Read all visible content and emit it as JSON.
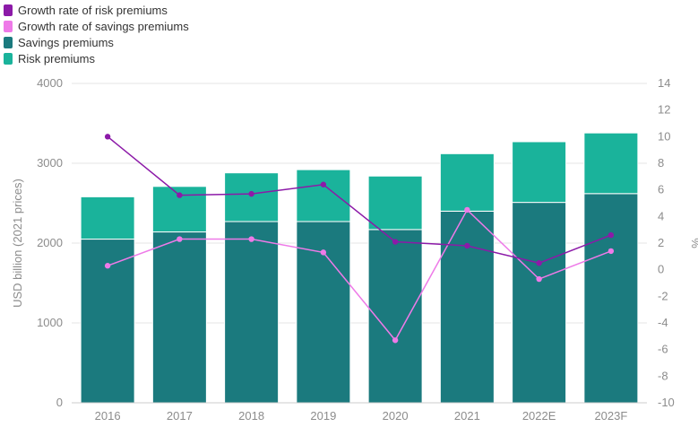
{
  "chart_data": {
    "type": "bar",
    "stacked": true,
    "categories": [
      "2016",
      "2017",
      "2018",
      "2019",
      "2020",
      "2021",
      "2022E",
      "2023F"
    ],
    "series": [
      {
        "name": "Savings premiums",
        "kind": "bar",
        "axis": "left",
        "color": "#1b7a7e",
        "values": [
          2050,
          2140,
          2270,
          2270,
          2170,
          2400,
          2510,
          2620
        ]
      },
      {
        "name": "Risk premiums",
        "kind": "bar",
        "axis": "left",
        "color": "#1ab39b",
        "values": [
          530,
          570,
          610,
          650,
          670,
          720,
          760,
          760
        ]
      },
      {
        "name": "Growth rate of risk premiums",
        "kind": "line",
        "axis": "right",
        "color": "#8c1aa8",
        "values": [
          10.0,
          5.6,
          5.7,
          6.4,
          2.1,
          1.8,
          0.5,
          2.6
        ]
      },
      {
        "name": "Growth rate of savings premiums",
        "kind": "line",
        "axis": "right",
        "color": "#ee7ae8",
        "values": [
          0.3,
          2.3,
          2.3,
          1.3,
          -5.3,
          4.5,
          -0.7,
          1.4
        ]
      }
    ],
    "legend_order": [
      "Growth rate of risk premiums",
      "Growth rate of savings premiums",
      "Savings premiums",
      "Risk premiums"
    ],
    "legend_position": "top-left",
    "ylabel": "USD billion (2021 prices)",
    "ylim": [
      0,
      4000
    ],
    "yticks": [
      0,
      1000,
      2000,
      3000,
      4000
    ],
    "y2label": "%",
    "y2lim": [
      -10,
      14
    ],
    "y2ticks": [
      -10,
      -8,
      -6,
      -4,
      -2,
      0,
      2,
      4,
      6,
      8,
      10,
      12,
      14
    ],
    "grid": true
  }
}
